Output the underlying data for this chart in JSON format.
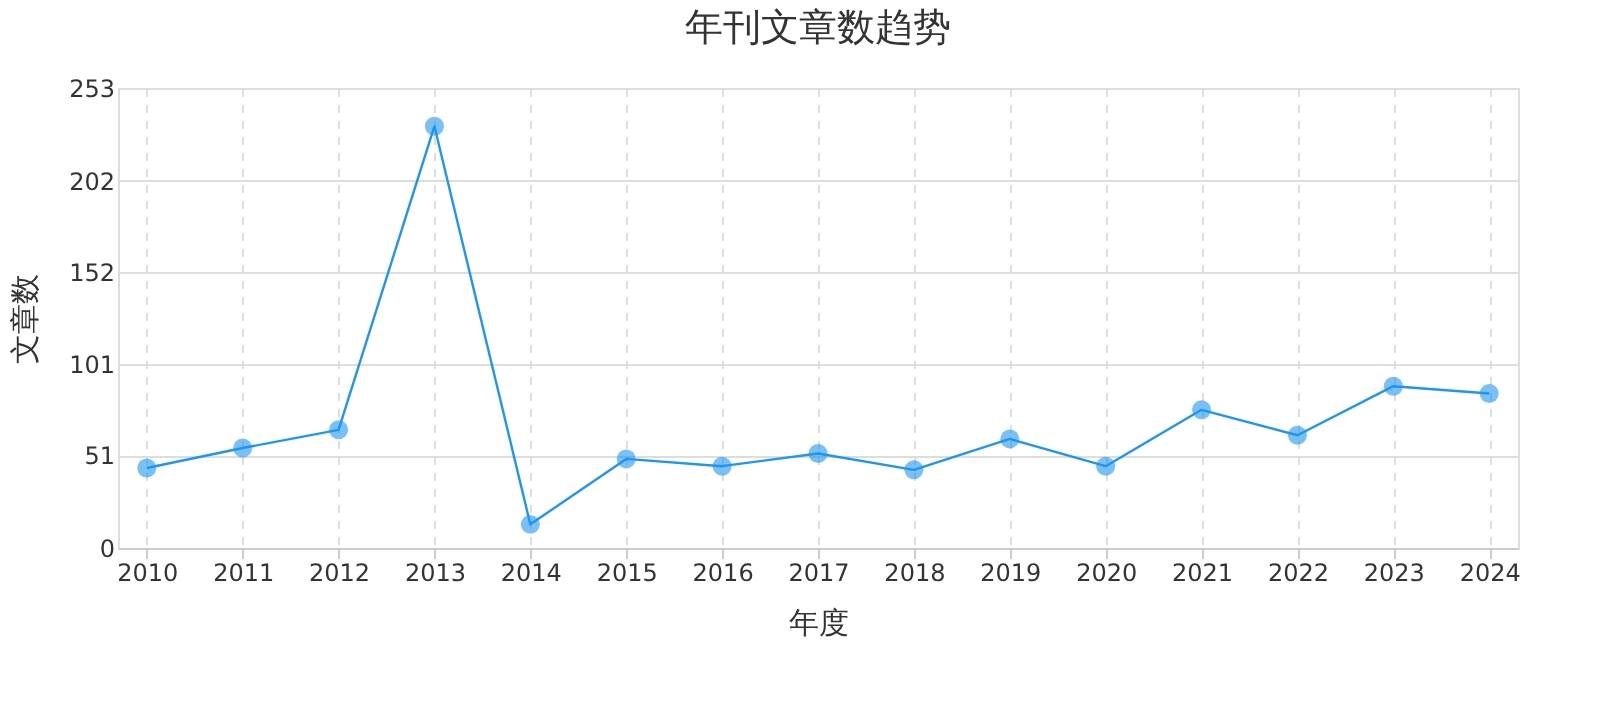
{
  "chart_data": {
    "type": "line",
    "title": "年刊文章数趋势",
    "xlabel": "年度",
    "ylabel": "文章数",
    "categories": [
      "2010",
      "2011",
      "2012",
      "2013",
      "2014",
      "2015",
      "2016",
      "2017",
      "2018",
      "2019",
      "2020",
      "2021",
      "2022",
      "2023",
      "2024"
    ],
    "series": [
      {
        "color": "#1e96f0",
        "values": [
          44,
          55,
          65,
          232,
          13,
          49,
          45,
          52,
          43,
          60,
          45,
          76,
          62,
          89,
          85
        ]
      }
    ],
    "ylim": [
      0,
      253
    ],
    "yticks": [
      0,
      51,
      101,
      152,
      202,
      253
    ],
    "grid": true,
    "marker": "circle",
    "line_style": "solid"
  }
}
